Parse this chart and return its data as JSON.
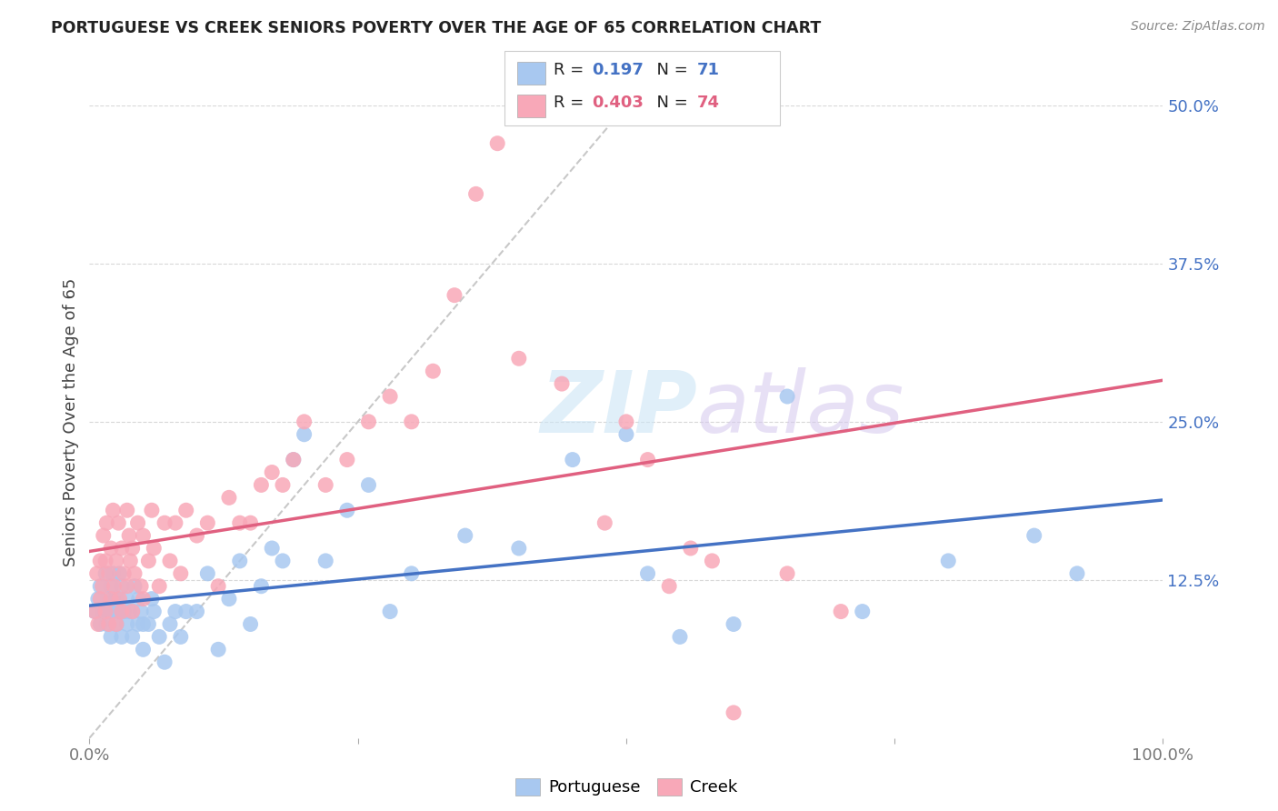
{
  "title": "PORTUGUESE VS CREEK SENIORS POVERTY OVER THE AGE OF 65 CORRELATION CHART",
  "source": "Source: ZipAtlas.com",
  "ylabel": "Seniors Poverty Over the Age of 65",
  "portuguese_R": 0.197,
  "portuguese_N": 71,
  "creek_R": 0.403,
  "creek_N": 74,
  "portuguese_color": "#a8c8f0",
  "creek_color": "#f8a8b8",
  "portuguese_line_color": "#4472c4",
  "creek_line_color": "#e06080",
  "diagonal_color": "#c8c8c8",
  "background_color": "#ffffff",
  "grid_color": "#d8d8d8",
  "xlim": [
    0,
    1.0
  ],
  "ylim": [
    0,
    0.5
  ],
  "port_x": [
    0.005,
    0.008,
    0.01,
    0.01,
    0.012,
    0.015,
    0.015,
    0.016,
    0.017,
    0.018,
    0.02,
    0.02,
    0.02,
    0.022,
    0.022,
    0.025,
    0.025,
    0.027,
    0.028,
    0.03,
    0.03,
    0.03,
    0.032,
    0.035,
    0.035,
    0.037,
    0.04,
    0.04,
    0.042,
    0.045,
    0.046,
    0.048,
    0.05,
    0.05,
    0.055,
    0.058,
    0.06,
    0.065,
    0.07,
    0.075,
    0.08,
    0.085,
    0.09,
    0.1,
    0.11,
    0.12,
    0.13,
    0.14,
    0.15,
    0.16,
    0.17,
    0.18,
    0.19,
    0.2,
    0.22,
    0.24,
    0.26,
    0.28,
    0.3,
    0.35,
    0.4,
    0.45,
    0.5,
    0.52,
    0.55,
    0.6,
    0.65,
    0.72,
    0.8,
    0.88,
    0.92
  ],
  "port_y": [
    0.1,
    0.11,
    0.09,
    0.12,
    0.1,
    0.1,
    0.13,
    0.09,
    0.11,
    0.1,
    0.08,
    0.1,
    0.12,
    0.11,
    0.13,
    0.09,
    0.11,
    0.1,
    0.13,
    0.08,
    0.1,
    0.12,
    0.1,
    0.09,
    0.11,
    0.1,
    0.08,
    0.1,
    0.12,
    0.09,
    0.11,
    0.1,
    0.07,
    0.09,
    0.09,
    0.11,
    0.1,
    0.08,
    0.06,
    0.09,
    0.1,
    0.08,
    0.1,
    0.1,
    0.13,
    0.07,
    0.11,
    0.14,
    0.09,
    0.12,
    0.15,
    0.14,
    0.22,
    0.24,
    0.14,
    0.18,
    0.2,
    0.1,
    0.13,
    0.16,
    0.15,
    0.22,
    0.24,
    0.13,
    0.08,
    0.09,
    0.27,
    0.1,
    0.14,
    0.16,
    0.13
  ],
  "creek_x": [
    0.005,
    0.007,
    0.008,
    0.01,
    0.01,
    0.012,
    0.013,
    0.015,
    0.015,
    0.016,
    0.018,
    0.018,
    0.02,
    0.02,
    0.022,
    0.023,
    0.025,
    0.025,
    0.027,
    0.028,
    0.03,
    0.03,
    0.032,
    0.035,
    0.035,
    0.037,
    0.038,
    0.04,
    0.04,
    0.042,
    0.045,
    0.048,
    0.05,
    0.05,
    0.055,
    0.058,
    0.06,
    0.065,
    0.07,
    0.075,
    0.08,
    0.085,
    0.09,
    0.1,
    0.11,
    0.12,
    0.13,
    0.14,
    0.15,
    0.16,
    0.17,
    0.18,
    0.19,
    0.2,
    0.22,
    0.24,
    0.26,
    0.28,
    0.3,
    0.32,
    0.34,
    0.36,
    0.38,
    0.4,
    0.44,
    0.48,
    0.5,
    0.52,
    0.54,
    0.56,
    0.58,
    0.6,
    0.65,
    0.7
  ],
  "creek_y": [
    0.1,
    0.13,
    0.09,
    0.11,
    0.14,
    0.12,
    0.16,
    0.1,
    0.14,
    0.17,
    0.09,
    0.13,
    0.11,
    0.15,
    0.18,
    0.12,
    0.09,
    0.14,
    0.17,
    0.11,
    0.1,
    0.15,
    0.13,
    0.18,
    0.12,
    0.16,
    0.14,
    0.1,
    0.15,
    0.13,
    0.17,
    0.12,
    0.11,
    0.16,
    0.14,
    0.18,
    0.15,
    0.12,
    0.17,
    0.14,
    0.17,
    0.13,
    0.18,
    0.16,
    0.17,
    0.12,
    0.19,
    0.17,
    0.17,
    0.2,
    0.21,
    0.2,
    0.22,
    0.25,
    0.2,
    0.22,
    0.25,
    0.27,
    0.25,
    0.29,
    0.35,
    0.43,
    0.47,
    0.3,
    0.28,
    0.17,
    0.25,
    0.22,
    0.12,
    0.15,
    0.14,
    0.02,
    0.13,
    0.1
  ]
}
